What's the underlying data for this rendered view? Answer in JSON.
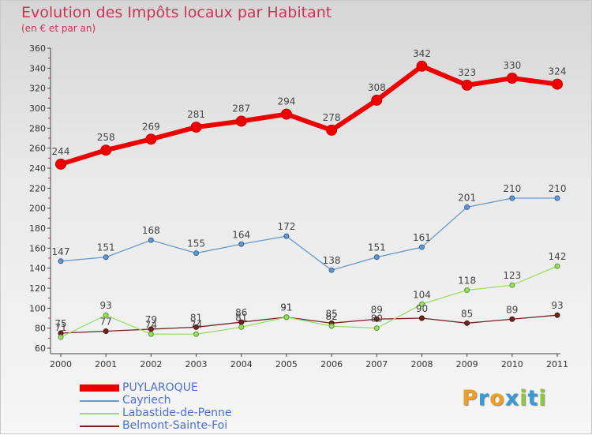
{
  "header": {
    "title": "Evolution des Impôts locaux par Habitant",
    "subtitle": "(en € et par an)"
  },
  "logo": {
    "letters": [
      "P",
      "r",
      "o",
      "x",
      "i",
      "t",
      "i"
    ],
    "colors": [
      "#f0a020",
      "#3a9ad8",
      "#f0a020",
      "#3a9ad8",
      "#8ec63f",
      "#3a9ad8",
      "#8ec63f"
    ]
  },
  "chart_data": {
    "type": "line",
    "x": [
      "2000",
      "2001",
      "2002",
      "2003",
      "2004",
      "2005",
      "2006",
      "2007",
      "2008",
      "2009",
      "2010",
      "2011"
    ],
    "ylim": [
      60,
      360
    ],
    "yticks": [
      60,
      80,
      100,
      120,
      140,
      160,
      180,
      200,
      220,
      240,
      260,
      280,
      300,
      320,
      340,
      360
    ],
    "grid": false,
    "legend_position": "bottom-left",
    "series": [
      {
        "name": "PUYLAROQUE",
        "color": "#ee0000",
        "values": [
          244,
          258,
          269,
          281,
          287,
          294,
          278,
          308,
          342,
          323,
          330,
          324
        ]
      },
      {
        "name": "Cayriech",
        "color": "#6699cc",
        "values": [
          147,
          151,
          168,
          155,
          164,
          172,
          138,
          151,
          161,
          201,
          210,
          210
        ]
      },
      {
        "name": "Labastide-de-Penne",
        "color": "#99dd66",
        "values": [
          71,
          93,
          74,
          74,
          81,
          91,
          82,
          80,
          104,
          118,
          123,
          142
        ]
      },
      {
        "name": "Belmont-Sainte-Foi",
        "color": "#772222",
        "values": [
          75,
          77,
          79,
          81,
          86,
          91,
          85,
          89,
          90,
          85,
          89,
          93
        ]
      }
    ]
  }
}
